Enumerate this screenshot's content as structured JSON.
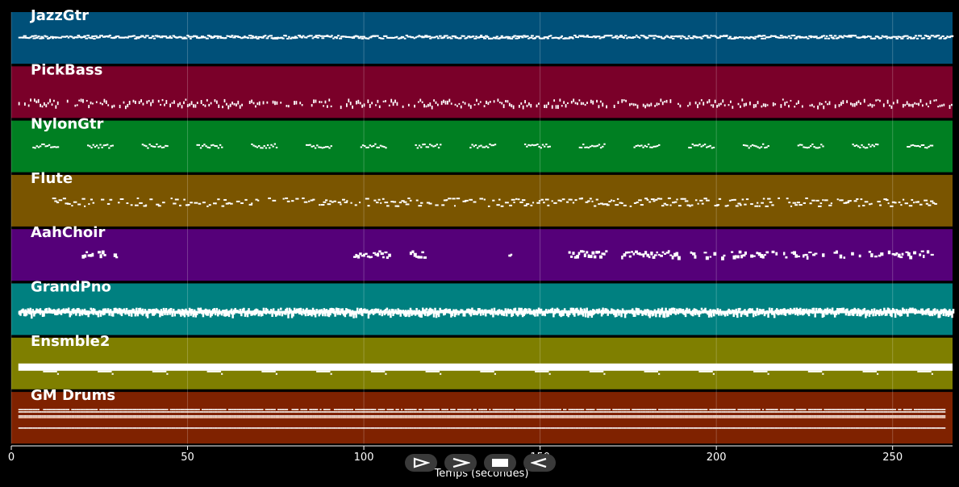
{
  "chart_data": {
    "type": "piano-roll",
    "xlabel": "Temps (secondes)",
    "xlim": [
      0,
      267
    ],
    "x_ticks": [
      0,
      50,
      100,
      150,
      200,
      250
    ],
    "grid": true,
    "tracks": [
      {
        "name": "JazzGtr",
        "color": "#005079",
        "pattern": "dense",
        "start": 2,
        "end": 267
      },
      {
        "name": "PickBass",
        "color": "#7a0029",
        "pattern": "scatter",
        "start": 2,
        "end": 267
      },
      {
        "name": "NylonGtr",
        "color": "#007f22",
        "pattern": "phrases",
        "start": 6,
        "end": 262
      },
      {
        "name": "Flute",
        "color": "#7a5500",
        "pattern": "sparse",
        "start": 11,
        "end": 262
      },
      {
        "name": "AahChoir",
        "color": "#550079",
        "pattern": "blocks",
        "start": 20,
        "end": 262
      },
      {
        "name": "GrandPno",
        "color": "#008080",
        "pattern": "thick",
        "start": 2,
        "end": 267
      },
      {
        "name": "Ensmble2",
        "color": "#7f7f00",
        "pattern": "sustain",
        "start": 2,
        "end": 267
      },
      {
        "name": "GM Drums",
        "color": "#7f2200",
        "pattern": "drums",
        "start": 0,
        "end": 265
      }
    ]
  },
  "controls": [
    {
      "name": "play",
      "icon": "play-icon"
    },
    {
      "name": "forward",
      "icon": "forward-icon"
    },
    {
      "name": "stop",
      "icon": "stop-icon"
    },
    {
      "name": "rewind",
      "icon": "rewind-icon"
    }
  ]
}
